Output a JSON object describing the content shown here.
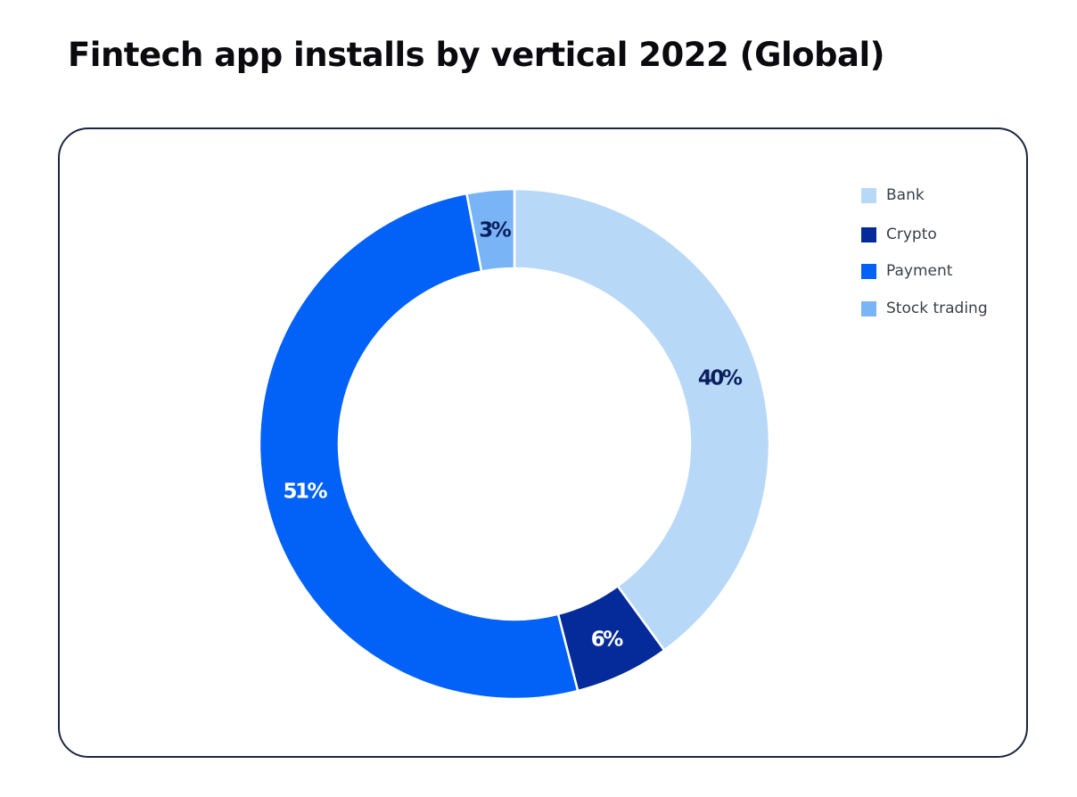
{
  "title": "Fintech app installs by vertical  2022  (Global)",
  "chart_data": {
    "type": "pie",
    "subtype": "donut",
    "title": "Fintech app installs by vertical  2022  (Global)",
    "legend_position": "top-right",
    "slices": [
      {
        "name": "Bank",
        "value": 40,
        "label": "40%",
        "color": "#b8d8f8",
        "label_color": "#0a1f5c"
      },
      {
        "name": "Crypto",
        "value": 6,
        "label": "6%",
        "color": "#052a9a",
        "label_color": "#ffffff"
      },
      {
        "name": "Payment",
        "value": 51,
        "label": "51%",
        "color": "#0261f7",
        "label_color": "#ffffff"
      },
      {
        "name": "Stock trading",
        "value": 3,
        "label": "3%",
        "color": "#79b4f6",
        "label_color": "#0a1f5c"
      }
    ]
  }
}
